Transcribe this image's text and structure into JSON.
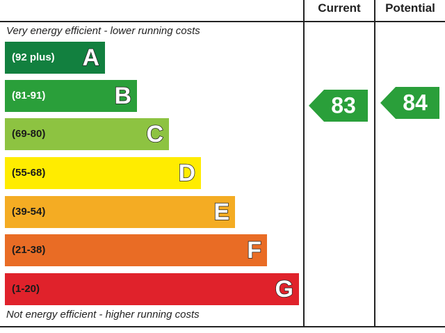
{
  "header": {
    "current": "Current",
    "potential": "Potential"
  },
  "top_note": "Very energy efficient - lower running costs",
  "bottom_note": "Not energy efficient - higher running costs",
  "bands": [
    {
      "range": "(92 plus)",
      "letter": "A",
      "color": "#12803f",
      "text_color": "#ffffff"
    },
    {
      "range": "(81-91)",
      "letter": "B",
      "color": "#2a9f3a",
      "text_color": "#ffffff"
    },
    {
      "range": "(69-80)",
      "letter": "C",
      "color": "#8dc341",
      "text_color": "#1a1a1a"
    },
    {
      "range": "(55-68)",
      "letter": "D",
      "color": "#ffec00",
      "text_color": "#1a1a1a"
    },
    {
      "range": "(39-54)",
      "letter": "E",
      "color": "#f4ac23",
      "text_color": "#1a1a1a"
    },
    {
      "range": "(21-38)",
      "letter": "F",
      "color": "#e96c25",
      "text_color": "#1a1a1a"
    },
    {
      "range": "(1-20)",
      "letter": "G",
      "color": "#e0222b",
      "text_color": "#1a1a1a"
    }
  ],
  "current": {
    "value": 83,
    "color": "#2a9f3a"
  },
  "potential": {
    "value": 84,
    "color": "#2a9f3a"
  }
}
